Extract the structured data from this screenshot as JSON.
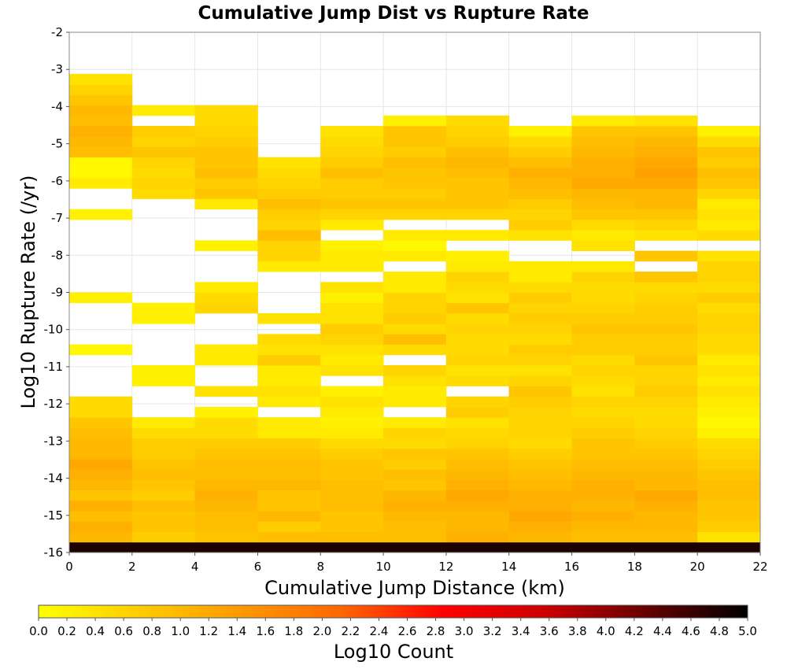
{
  "chart_data": {
    "type": "heatmap",
    "title": "Cumulative Jump Dist vs Rupture Rate",
    "xlabel": "Cumulative Jump Distance (km)",
    "ylabel": "Log10 Rupture Rate (/yr)",
    "xlim": [
      0,
      22
    ],
    "ylim": [
      -16,
      -2
    ],
    "x_ticks": [
      "0",
      "2",
      "4",
      "6",
      "8",
      "10",
      "12",
      "14",
      "16",
      "18",
      "20",
      "22"
    ],
    "y_ticks": [
      "-2",
      "-3",
      "-4",
      "-5",
      "-6",
      "-7",
      "-8",
      "-9",
      "-10",
      "-11",
      "-12",
      "-13",
      "-14",
      "-15",
      "-16"
    ],
    "grid": true,
    "x_bin_width": 2,
    "y_bin_height": 0.28,
    "y_bin_start": -16,
    "colorbar": {
      "label": "Log10 Count",
      "range": [
        0,
        5
      ],
      "ticks": [
        "0.0",
        "0.2",
        "0.4",
        "0.6",
        "0.8",
        "1.0",
        "1.2",
        "1.4",
        "1.6",
        "1.8",
        "2.0",
        "2.2",
        "2.4",
        "2.6",
        "2.8",
        "3.0",
        "3.2",
        "3.4",
        "3.6",
        "3.8",
        "4.0",
        "4.2",
        "4.4",
        "4.6",
        "4.8",
        "5.0"
      ],
      "colors": [
        "#ffff00",
        "#ffcc00",
        "#ff9900",
        "#ff6600",
        "#ff0000",
        "#cc0000",
        "#660000",
        "#000000"
      ]
    },
    "x_bins": [
      "0-2",
      "2-4",
      "4-6",
      "6-8",
      "8-10",
      "10-12",
      "12-14",
      "14-16",
      "16-18",
      "18-20",
      "20-22"
    ],
    "columns": [
      [
        4.8,
        1.0,
        1.1,
        0.9,
        1.1,
        0.8,
        1.0,
        1.1,
        1.2,
        1.0,
        1.0,
        0.9,
        0.8,
        0.5,
        0.5,
        null,
        null,
        null,
        null,
        0.1,
        null,
        null,
        null,
        null,
        0.2,
        null,
        null,
        null,
        null,
        null,
        null,
        null,
        0.2,
        null,
        null,
        0.3,
        0.1,
        0.1,
        0.9,
        1.0,
        1.1,
        0.9,
        1.0,
        0.8,
        0.6,
        0.4
      ],
      [
        4.8,
        0.7,
        0.8,
        0.8,
        0.9,
        0.7,
        0.8,
        0.9,
        0.8,
        0.7,
        0.7,
        0.5,
        0.3,
        null,
        null,
        null,
        0.2,
        0.2,
        null,
        null,
        null,
        null,
        0.2,
        0.2,
        null,
        null,
        null,
        null,
        null,
        null,
        null,
        null,
        null,
        null,
        0.5,
        0.6,
        0.5,
        0.6,
        0.8,
        0.6,
        0.7,
        null,
        0.3
      ],
      [
        4.8,
        0.8,
        0.9,
        0.9,
        1.0,
        1.1,
        1.0,
        0.9,
        0.9,
        0.8,
        0.7,
        0.5,
        0.5,
        0.2,
        null,
        0.4,
        null,
        null,
        0.3,
        0.3,
        null,
        null,
        null,
        0.6,
        0.5,
        0.3,
        null,
        null,
        null,
        0.2,
        null,
        null,
        null,
        0.3,
        0.8,
        0.7,
        0.9,
        0.8,
        0.8,
        0.7,
        0.6,
        0.5,
        0.5
      ],
      [
        4.8,
        0.9,
        0.7,
        1.0,
        0.8,
        0.8,
        1.0,
        0.9,
        0.9,
        0.8,
        0.7,
        0.3,
        0.3,
        null,
        0.3,
        0.4,
        0.3,
        0.3,
        0.7,
        0.4,
        0.5,
        null,
        0.4,
        null,
        null,
        null,
        null,
        0.3,
        0.6,
        0.6,
        0.9,
        0.6,
        0.7,
        0.9,
        0.7,
        0.6,
        0.5,
        0.4
      ],
      [
        4.8,
        0.9,
        0.8,
        0.8,
        0.9,
        0.9,
        0.9,
        0.8,
        0.8,
        0.7,
        0.5,
        0.3,
        0.2,
        0.3,
        0.4,
        0.2,
        null,
        0.4,
        0.3,
        0.4,
        0.6,
        0.7,
        0.4,
        0.4,
        0.2,
        0.4,
        null,
        0.3,
        0.3,
        0.2,
        null,
        0.3,
        0.6,
        0.8,
        0.7,
        0.7,
        0.9,
        0.7,
        0.6,
        0.5,
        0.4
      ],
      [
        4.8,
        0.9,
        0.9,
        1.0,
        1.1,
        1.0,
        0.8,
        0.9,
        0.7,
        0.8,
        0.5,
        0.6,
        0.3,
        null,
        0.3,
        0.3,
        0.4,
        0.6,
        null,
        0.5,
        0.9,
        0.5,
        0.7,
        0.6,
        0.6,
        0.3,
        0.3,
        null,
        0.3,
        0.1,
        0.3,
        null,
        0.6,
        0.8,
        0.7,
        0.8,
        0.8,
        0.9,
        0.7,
        0.8,
        0.8,
        0.2
      ],
      [
        4.8,
        1.1,
        1.0,
        1.0,
        1.1,
        1.2,
        1.1,
        1.0,
        0.9,
        0.8,
        0.6,
        0.5,
        0.4,
        0.7,
        0.6,
        null,
        0.5,
        0.4,
        0.6,
        0.5,
        0.5,
        0.6,
        0.5,
        0.8,
        0.4,
        0.5,
        0.6,
        0.3,
        0.2,
        null,
        0.3,
        null,
        0.6,
        0.8,
        0.8,
        0.8,
        0.9,
        1.0,
        0.9,
        0.7,
        0.6,
        0.5
      ],
      [
        4.8,
        1.0,
        1.1,
        1.2,
        1.1,
        1.1,
        1.0,
        0.9,
        0.8,
        0.7,
        0.5,
        0.6,
        0.6,
        0.6,
        0.7,
        0.8,
        0.6,
        0.4,
        0.6,
        0.7,
        0.5,
        0.6,
        0.7,
        0.6,
        0.7,
        0.5,
        0.3,
        0.3,
        null,
        null,
        0.4,
        0.7,
        0.6,
        0.7,
        0.9,
        1.0,
        1.1,
        0.9,
        0.7,
        0.5,
        0.2
      ],
      [
        4.8,
        0.9,
        1.0,
        1.1,
        1.0,
        1.1,
        1.1,
        1.0,
        0.9,
        0.8,
        0.8,
        0.7,
        0.6,
        0.5,
        0.6,
        0.4,
        0.5,
        0.6,
        0.5,
        0.7,
        0.7,
        0.8,
        0.7,
        0.6,
        0.5,
        0.5,
        0.6,
        0.3,
        null,
        0.4,
        0.3,
        0.5,
        0.8,
        0.9,
        1.0,
        1.2,
        1.1,
        1.1,
        1.0,
        0.9,
        0.8,
        0.3
      ],
      [
        4.8,
        0.9,
        1.0,
        1.0,
        1.1,
        1.2,
        1.0,
        1.0,
        0.9,
        0.8,
        0.7,
        0.6,
        0.5,
        0.5,
        0.6,
        0.7,
        0.6,
        0.6,
        0.8,
        0.7,
        0.7,
        0.8,
        0.7,
        0.7,
        0.6,
        0.5,
        0.8,
        null,
        0.8,
        null,
        0.4,
        0.6,
        0.8,
        1.0,
        1.0,
        1.2,
        1.3,
        1.2,
        1.1,
        1.0,
        0.8,
        0.4
      ],
      [
        4.8,
        0.4,
        0.7,
        0.8,
        0.8,
        0.9,
        0.9,
        0.8,
        0.7,
        0.6,
        0.5,
        0.2,
        0.1,
        0.2,
        0.3,
        0.4,
        0.3,
        0.4,
        0.3,
        0.5,
        0.5,
        0.6,
        0.6,
        0.5,
        0.7,
        0.5,
        0.6,
        0.6,
        0.4,
        null,
        0.5,
        0.3,
        0.4,
        0.3,
        0.6,
        0.8,
        0.9,
        0.7,
        0.8,
        0.5,
        0.2
      ]
    ]
  }
}
